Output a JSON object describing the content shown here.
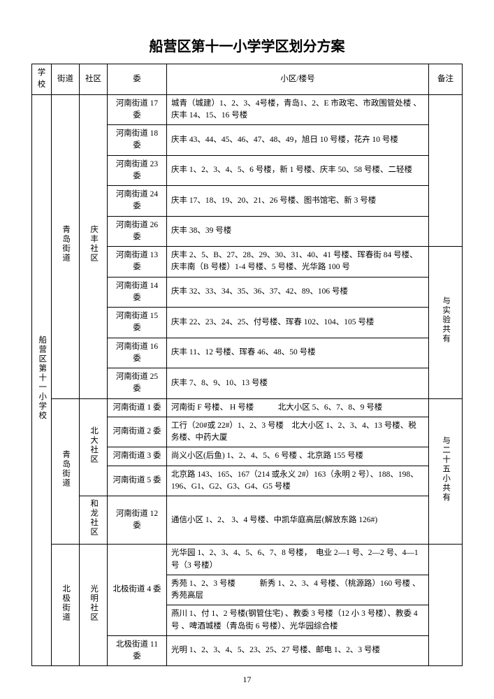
{
  "title": "船营区第十一小学学区划分方案",
  "pageNumber": "17",
  "headers": {
    "school": "学校",
    "street": "街道",
    "community": "社区",
    "wei": "委",
    "area": "小区/楼号",
    "note": "备注"
  },
  "schoolName": "船营区第十一小学校",
  "streets": {
    "qingdao1": "青岛街道",
    "qingdao2": "青岛街道",
    "beiji": "北极街道"
  },
  "communities": {
    "qingfeng": "庆丰社区",
    "beida": "北大社区",
    "helong": "和龙社区",
    "guangming": "光明社区"
  },
  "notes": {
    "shiyan": "与实验共有",
    "ershiwu": "与二十五小共有"
  },
  "rows": [
    {
      "wei": "河南街道 17 委",
      "area": "城青（城建）1、2、3、4号楼，青岛1、2、E 市政宅、市政围管处楼 、庆丰 14、15、16 号楼"
    },
    {
      "wei": "河南街道 18 委",
      "area": "庆丰 43、44、45、46、47、48、49，旭日 10 号楼，花卉 10 号楼"
    },
    {
      "wei": "河南街道 23 委",
      "area": "庆丰 1、2、3、4、5、6 号楼，新 1 号楼、庆丰 50、58 号楼、二轻楼"
    },
    {
      "wei": "河南街道 24 委",
      "area": "庆丰 17、18、19、20、21、26 号楼、图书馆宅、新 3 号楼"
    },
    {
      "wei": "河南街道 26 委",
      "area": "庆丰 38、39 号楼"
    },
    {
      "wei": "河南街道 13 委",
      "area": "庆丰 2、5、B、27、28、29、30、31、40、41 号楼、珲春街 84 号楼、庆丰南（B 号楼）1-4 号楼、5 号楼、光华路 100 号"
    },
    {
      "wei": "河南街道 14 委",
      "area": "庆丰 32、33、34、35、36、37、42、89、106 号楼"
    },
    {
      "wei": "河南街道 15 委",
      "area": "庆丰 22、23、24、25、付号楼、珲春 102、104、105 号楼"
    },
    {
      "wei": "河南街道 16 委",
      "area": "庆丰 11、12 号楼、珲春 46、48、50 号楼"
    },
    {
      "wei": "河南街道 25 委",
      "area": "庆丰 7、8、9、10、13 号楼"
    },
    {
      "wei": "河南街道 1 委",
      "area": "河南街 F 号楼、 H 号楼　　　北大小区 5、6、7、8、9 号楼"
    },
    {
      "wei": "河南街道 2 委",
      "area": "工行（20#或 22#）1、2、3 号楼　北大小区 1、2、3、4、13 号楼、税务楼、中药大厦"
    },
    {
      "wei": "河南街道 3 委",
      "area": "尚义小区(后鱼) 1、2、4、5、6 号楼 、北京路 155 号楼"
    },
    {
      "wei": "河南街道 5 委",
      "area": "北京路 143、165、167（214 或永义 2#）163（永明 2 号）、188、198、196、G1、G2、G3、G4、G5 号楼"
    },
    {
      "wei": "河南街道 12 委",
      "area": "通信小区 1、2、 3、4 号楼、中凯华庭高层(解放东路 126#)"
    },
    {
      "wei": "",
      "area": "光华园 1、2、3、4、5、6、7、8 号楼，　电业 2—1 号、2—2 号、4—1 号（3 号楼）"
    },
    {
      "wei": "北极街道 4 委",
      "area": "秀苑 1、2、3 号楼　　　新秀 1、2、3、4 号楼、（桃源路）160 号楼 、秀苑高层"
    },
    {
      "wei": "",
      "area": "燕川 1、付 1、2 号楼(钢管住宅) 、教委 3 号楼（12 小 3 号楼）、教委 4 号 、啤酒城楼（青岛街 6 号楼）、光华园综合楼"
    },
    {
      "wei": "北极街道 11 委",
      "area": "光明 1、2、3、4、5、23、25、27 号楼、邮电 1、2、3 号楼"
    }
  ]
}
